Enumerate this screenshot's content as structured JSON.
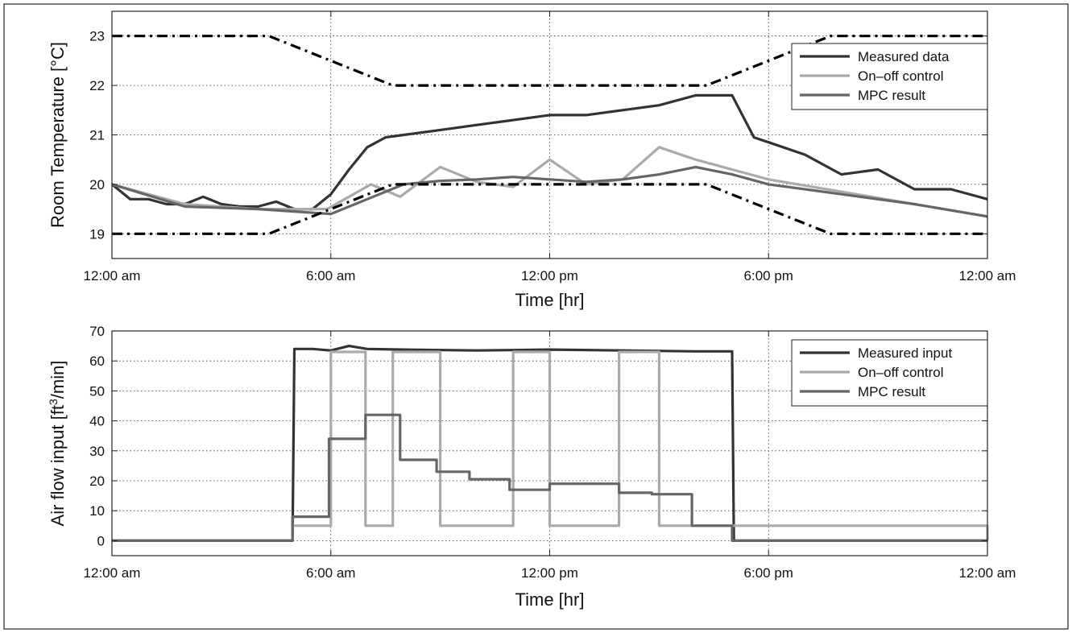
{
  "chart_data": [
    {
      "type": "line",
      "title": "",
      "xlabel": "Time [hr]",
      "ylabel": "Room Temperature [°C]",
      "xlim": [
        0,
        24
      ],
      "ylim": [
        18.5,
        23.5
      ],
      "grid": true,
      "legend": "top-right",
      "x_tick_values": [
        0,
        6,
        12,
        18,
        24
      ],
      "x_tick_labels": [
        "12:00 am",
        "6:00 am",
        "12:00 pm",
        "6:00 pm",
        "12:00 am"
      ],
      "y_ticks": [
        19,
        20,
        21,
        22,
        23
      ],
      "series": [
        {
          "name": "Measured data",
          "color": "#333333",
          "style": "solid",
          "x": [
            0,
            0.5,
            1,
            1.5,
            2,
            2.5,
            3,
            3.5,
            4,
            4.5,
            5,
            5.5,
            6,
            6.5,
            7,
            7.5,
            8,
            9,
            10,
            11,
            12,
            13,
            14,
            15,
            16,
            17,
            17.6,
            18,
            19,
            20,
            21,
            22,
            23,
            24
          ],
          "y": [
            20.0,
            19.7,
            19.7,
            19.6,
            19.6,
            19.75,
            19.6,
            19.55,
            19.55,
            19.65,
            19.5,
            19.5,
            19.8,
            20.3,
            20.75,
            20.95,
            21.0,
            21.1,
            21.2,
            21.3,
            21.4,
            21.4,
            21.5,
            21.6,
            21.8,
            21.8,
            20.95,
            20.85,
            20.6,
            20.2,
            20.3,
            19.9,
            19.9,
            19.7
          ]
        },
        {
          "name": "On–off control",
          "color": "#aaaaaa",
          "style": "solid",
          "x": [
            0,
            2,
            4,
            5.9,
            6.5,
            7.1,
            7.9,
            9.0,
            10.0,
            11.0,
            12.0,
            13.0,
            14.0,
            15.0,
            16.0,
            17.0,
            18.0,
            20.0,
            22.0,
            24.0
          ],
          "y": [
            20.0,
            19.6,
            19.5,
            19.5,
            19.75,
            20.0,
            19.75,
            20.35,
            20.05,
            19.95,
            20.5,
            20.0,
            20.1,
            20.75,
            20.5,
            20.3,
            20.1,
            19.85,
            19.6,
            19.35
          ]
        },
        {
          "name": "MPC result",
          "color": "#666666",
          "style": "solid",
          "x": [
            0,
            2,
            4,
            6.0,
            7.0,
            8.0,
            9.0,
            10.0,
            11.0,
            12.0,
            13.0,
            14.0,
            15.0,
            16.0,
            17.0,
            18.0,
            20.0,
            22.0,
            24.0
          ],
          "y": [
            20.0,
            19.55,
            19.5,
            19.4,
            19.7,
            20.0,
            20.07,
            20.1,
            20.15,
            20.1,
            20.05,
            20.1,
            20.2,
            20.35,
            20.2,
            20.0,
            19.8,
            19.6,
            19.35
          ]
        },
        {
          "name": "",
          "role": "upper comfort bound",
          "color": "#000000",
          "style": "dashdot",
          "x": [
            0,
            4.3,
            7.7,
            16.3,
            19.7,
            24
          ],
          "y": [
            23,
            23,
            22,
            22,
            23,
            23
          ]
        },
        {
          "name": "",
          "role": "lower comfort bound",
          "color": "#000000",
          "style": "dashdot",
          "x": [
            0,
            4.3,
            7.7,
            16.3,
            19.7,
            24
          ],
          "y": [
            19,
            19,
            20,
            20,
            19,
            19
          ]
        }
      ]
    },
    {
      "type": "line",
      "title": "",
      "xlabel": "Time [hr]",
      "ylabel": "Air flow input [ft³/min]",
      "ylabel_base": "Air flow input [ft",
      "ylabel_sup": "3",
      "ylabel_tail": "/min]",
      "xlim": [
        0,
        24
      ],
      "ylim": [
        -5,
        70
      ],
      "grid": true,
      "legend": "top-right",
      "x_tick_values": [
        0,
        6,
        12,
        18,
        24
      ],
      "x_tick_labels": [
        "12:00 am",
        "6:00 am",
        "12:00 pm",
        "6:00 pm",
        "12:00 am"
      ],
      "y_ticks": [
        0,
        10,
        20,
        30,
        40,
        50,
        60,
        70
      ],
      "series": [
        {
          "name": "Measured input",
          "color": "#333333",
          "style": "solid",
          "x": [
            0,
            4.95,
            5.0,
            5.5,
            6.0,
            6.5,
            7.0,
            8.0,
            10.0,
            12.0,
            14.0,
            16.0,
            17.0,
            17.05,
            24
          ],
          "y": [
            0,
            0,
            64,
            64,
            63.5,
            65,
            64,
            63.8,
            63.5,
            63.8,
            63.5,
            63.2,
            63.2,
            0,
            0
          ]
        },
        {
          "name": "On–off control",
          "color": "#aaaaaa",
          "style": "step",
          "x": [
            0,
            4.95,
            6.0,
            6.95,
            7.7,
            9.0,
            11.0,
            12.0,
            13.9,
            15.0,
            24
          ],
          "y": [
            0,
            5,
            63,
            5,
            63,
            5,
            63,
            5,
            63,
            5,
            0
          ]
        },
        {
          "name": "MPC result",
          "color": "#666666",
          "style": "step",
          "x": [
            0,
            4.95,
            5.95,
            6.95,
            7.9,
            8.9,
            9.8,
            10.9,
            12.0,
            13.0,
            13.9,
            14.8,
            15.9,
            17.0,
            24
          ],
          "y": [
            0,
            8,
            34,
            42,
            27,
            23,
            20.5,
            17,
            19,
            19,
            16,
            15.5,
            5,
            0,
            0
          ]
        }
      ]
    }
  ]
}
